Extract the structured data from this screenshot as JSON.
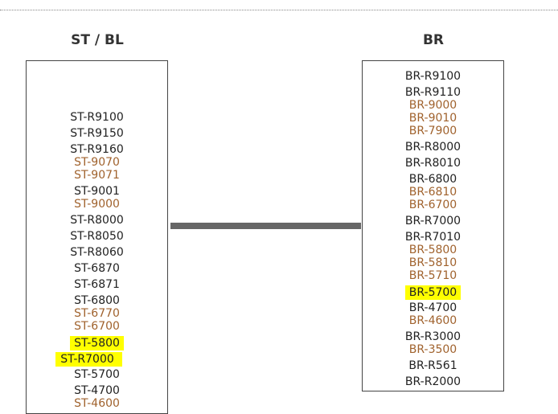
{
  "columns": [
    {
      "title": "ST / BL",
      "items": [
        {
          "label": "ST-R9100",
          "style": "normal"
        },
        {
          "label": "ST-R9150",
          "style": "normal"
        },
        {
          "label": "ST-R9160",
          "style": "normal"
        },
        {
          "label": "ST-9070",
          "style": "brown"
        },
        {
          "label": "ST-9071",
          "style": "brown"
        },
        {
          "label": "ST-9001",
          "style": "normal"
        },
        {
          "label": "ST-9000",
          "style": "brown"
        },
        {
          "label": "ST-R8000",
          "style": "normal"
        },
        {
          "label": "ST-R8050",
          "style": "normal"
        },
        {
          "label": "ST-R8060",
          "style": "normal"
        },
        {
          "label": "ST-6870",
          "style": "normal"
        },
        {
          "label": "ST-6871",
          "style": "normal"
        },
        {
          "label": "ST-6800",
          "style": "normal"
        },
        {
          "label": "ST-6770",
          "style": "brown"
        },
        {
          "label": "ST-6700",
          "style": "brown"
        },
        {
          "label": "ST-5800",
          "style": "highlight"
        },
        {
          "label": "ST-R7000",
          "style": "highlight"
        },
        {
          "label": "ST-5700",
          "style": "normal"
        },
        {
          "label": "ST-4700",
          "style": "normal"
        },
        {
          "label": "ST-4600",
          "style": "brown"
        }
      ]
    },
    {
      "title": "BR",
      "items": [
        {
          "label": "BR-R9100",
          "style": "normal"
        },
        {
          "label": "BR-R9110",
          "style": "normal"
        },
        {
          "label": "BR-9000",
          "style": "brown"
        },
        {
          "label": "BR-9010",
          "style": "brown"
        },
        {
          "label": "BR-7900",
          "style": "brown"
        },
        {
          "label": "BR-R8000",
          "style": "normal"
        },
        {
          "label": "BR-R8010",
          "style": "normal"
        },
        {
          "label": "BR-6800",
          "style": "normal"
        },
        {
          "label": "BR-6810",
          "style": "brown"
        },
        {
          "label": "BR-6700",
          "style": "brown"
        },
        {
          "label": "BR-R7000",
          "style": "normal"
        },
        {
          "label": "BR-R7010",
          "style": "normal"
        },
        {
          "label": "BR-5800",
          "style": "brown"
        },
        {
          "label": "BR-5810",
          "style": "brown"
        },
        {
          "label": "BR-5710",
          "style": "brown"
        },
        {
          "label": "BR-5700",
          "style": "highlight"
        },
        {
          "label": "BR-4700",
          "style": "normal"
        },
        {
          "label": "BR-4600",
          "style": "brown"
        },
        {
          "label": "BR-R3000",
          "style": "normal"
        },
        {
          "label": "BR-3500",
          "style": "brown"
        },
        {
          "label": "BR-R561",
          "style": "normal"
        },
        {
          "label": "BR-R2000",
          "style": "normal"
        }
      ]
    }
  ],
  "colors": {
    "brown": "#a0622d",
    "highlight": "#ffff00",
    "connector": "#666666"
  }
}
